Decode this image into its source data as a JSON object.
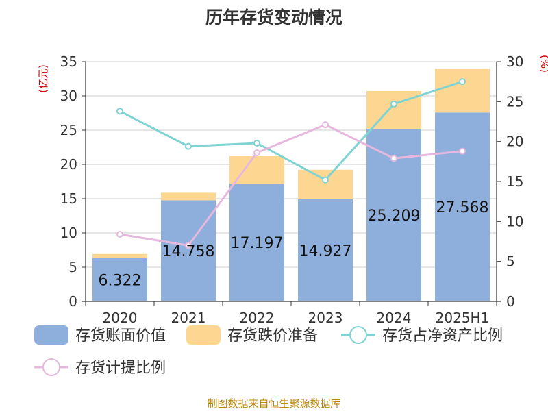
{
  "chart_data": {
    "type": "bar",
    "title": "历年存货变动情况",
    "y_left_unit": "(亿元)",
    "y_right_unit": "(%)",
    "categories": [
      "2020",
      "2021",
      "2022",
      "2023",
      "2024",
      "2025H1"
    ],
    "ylim_left": [
      0,
      35
    ],
    "ylim_right": [
      0,
      30
    ],
    "yticks_left": [
      "0",
      "5",
      "10",
      "15",
      "20",
      "25",
      "30",
      "35"
    ],
    "yticks_right": [
      "0",
      "5",
      "10",
      "15",
      "20",
      "25",
      "30"
    ],
    "grid": true,
    "legend_position": "bottom",
    "series": [
      {
        "name": "存货账面价值",
        "kind": "bar",
        "axis": "left",
        "color": "#8eaedc",
        "values": [
          6.322,
          14.758,
          17.197,
          14.927,
          25.209,
          27.568
        ],
        "labels": [
          "6.322",
          "14.758",
          "17.197",
          "14.927",
          "25.209",
          "27.568"
        ]
      },
      {
        "name": "存货跌价准备",
        "kind": "bar",
        "axis": "left",
        "color": "#fdd791",
        "values": [
          0.6,
          1.1,
          4.0,
          4.3,
          5.5,
          6.4
        ]
      },
      {
        "name": "存货占净资产比例",
        "kind": "line",
        "axis": "right",
        "color": "#7fd3d3",
        "values": [
          23.8,
          19.4,
          19.8,
          15.2,
          24.7,
          27.5
        ]
      },
      {
        "name": "存货计提比例",
        "kind": "line",
        "axis": "right",
        "color": "#e6b8de",
        "values": [
          8.4,
          7.0,
          18.6,
          22.1,
          17.9,
          18.8
        ]
      }
    ]
  },
  "source": "制图数据来自恒生聚源数据库"
}
